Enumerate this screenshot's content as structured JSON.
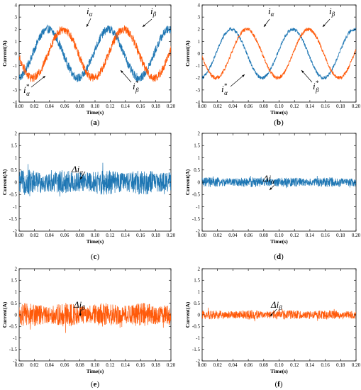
{
  "chart_data": [
    {
      "panel": "(a)",
      "type": "line",
      "xlabel": "Time(s)",
      "ylabel": "Current(A)",
      "xlim": [
        0,
        0.2
      ],
      "ylim": [
        -4,
        4
      ],
      "xticks": [
        "0.00",
        "0.02",
        "0.04",
        "0.06",
        "0.08",
        "0.10",
        "0.12",
        "0.14",
        "0.16",
        "0.18",
        "0.20"
      ],
      "yticks": [
        "4",
        "3",
        "2",
        "1",
        "0",
        "-1",
        "-2",
        "-3",
        "-4"
      ],
      "signal": "sine",
      "amplitude": 2,
      "frequency_hz": 12.5,
      "noise": 0.35,
      "series": [
        {
          "color": "#1f77b4",
          "phase_offset_s": 0.0
        },
        {
          "color": "#ff5a0a",
          "phase_offset_s": 0.02
        }
      ],
      "annotations": [
        {
          "base": "i",
          "sub": "α",
          "sup": ""
        },
        {
          "base": "i",
          "sub": "β",
          "sup": ""
        },
        {
          "base": "i",
          "sub": "α",
          "sup": "*"
        },
        {
          "base": "i",
          "sub": "β",
          "sup": "*"
        }
      ]
    },
    {
      "panel": "(b)",
      "type": "line",
      "xlabel": "Time(s)",
      "ylabel": "Current(A)",
      "xlim": [
        0,
        0.2
      ],
      "ylim": [
        -4,
        4
      ],
      "xticks": [
        "0.00",
        "0.02",
        "0.04",
        "0.06",
        "0.08",
        "0.10",
        "0.12",
        "0.14",
        "0.16",
        "0.18",
        "0.20"
      ],
      "yticks": [
        "4",
        "3",
        "2",
        "1",
        "0",
        "-1",
        "-2",
        "-3",
        "-4"
      ],
      "signal": "sine",
      "amplitude": 2,
      "frequency_hz": 12.5,
      "noise": 0.15,
      "series": [
        {
          "color": "#1f77b4",
          "phase_offset_s": 0.0
        },
        {
          "color": "#ff5a0a",
          "phase_offset_s": 0.02
        }
      ],
      "annotations": [
        {
          "base": "i",
          "sub": "α",
          "sup": ""
        },
        {
          "base": "i",
          "sub": "β",
          "sup": ""
        },
        {
          "base": "i",
          "sub": "α",
          "sup": "*"
        },
        {
          "base": "i",
          "sub": "β",
          "sup": "*"
        }
      ]
    },
    {
      "panel": "(c)",
      "type": "line",
      "xlabel": "Time(s)",
      "ylabel": "Current(A)",
      "xlim": [
        0,
        0.2
      ],
      "ylim": [
        -2,
        2
      ],
      "xticks": [
        "0.00",
        "0.02",
        "0.04",
        "0.06",
        "0.08",
        "0.10",
        "0.12",
        "0.14",
        "0.16",
        "0.18",
        "0.20"
      ],
      "yticks": [
        "2",
        "1.5",
        "1",
        "0.5",
        "0",
        "-0.5",
        "-1",
        "-1.5",
        "-2"
      ],
      "signal": "noise",
      "noise": 0.45,
      "series": [
        {
          "color": "#1f77b4"
        }
      ],
      "annotations": [
        {
          "base": "Δi",
          "sub": "α",
          "sup": ""
        }
      ]
    },
    {
      "panel": "(d)",
      "type": "line",
      "xlabel": "Time(s)",
      "ylabel": "Current(A)",
      "xlim": [
        0,
        0.2
      ],
      "ylim": [
        -2,
        2
      ],
      "xticks": [
        "0.00",
        "0.02",
        "0.04",
        "0.06",
        "0.08",
        "0.10",
        "0.12",
        "0.14",
        "0.16",
        "0.18",
        "0.20"
      ],
      "yticks": [
        "2",
        "1.5",
        "1",
        "0.5",
        "0",
        "-0.5",
        "-1",
        "-1.5",
        "-2"
      ],
      "signal": "noise",
      "noise": 0.18,
      "series": [
        {
          "color": "#1f77b4"
        }
      ],
      "annotations": [
        {
          "base": "Δi",
          "sub": "α",
          "sup": ""
        }
      ]
    },
    {
      "panel": "(e)",
      "type": "line",
      "xlabel": "Time(s)",
      "ylabel": "Current(A)",
      "xlim": [
        0,
        0.2
      ],
      "ylim": [
        -2,
        2
      ],
      "xticks": [
        "0.00",
        "0.02",
        "0.04",
        "0.06",
        "0.08",
        "0.10",
        "0.12",
        "0.14",
        "0.16",
        "0.18",
        "0.20"
      ],
      "yticks": [
        "2",
        "1.5",
        "1",
        "0.5",
        "0",
        "-0.5",
        "-1",
        "-1.5",
        "-2"
      ],
      "signal": "noise",
      "noise": 0.45,
      "series": [
        {
          "color": "#ff5a0a"
        }
      ],
      "annotations": [
        {
          "base": "Δi",
          "sub": "β",
          "sup": ""
        }
      ]
    },
    {
      "panel": "(f)",
      "type": "line",
      "xlabel": "Time(s)",
      "ylabel": "Current(A)",
      "xlim": [
        0,
        0.2
      ],
      "ylim": [
        -2,
        2
      ],
      "xticks": [
        "0.00",
        "0.02",
        "0.04",
        "0.06",
        "0.08",
        "0.10",
        "0.12",
        "0.14",
        "0.16",
        "0.18",
        "0.20"
      ],
      "yticks": [
        "2",
        "1.5",
        "1",
        "0.5",
        "0",
        "-0.5",
        "-1",
        "-1.5",
        "-2"
      ],
      "signal": "noise",
      "noise": 0.18,
      "series": [
        {
          "color": "#ff5a0a"
        }
      ],
      "annotations": [
        {
          "base": "Δi",
          "sub": "β",
          "sup": ""
        }
      ]
    }
  ]
}
